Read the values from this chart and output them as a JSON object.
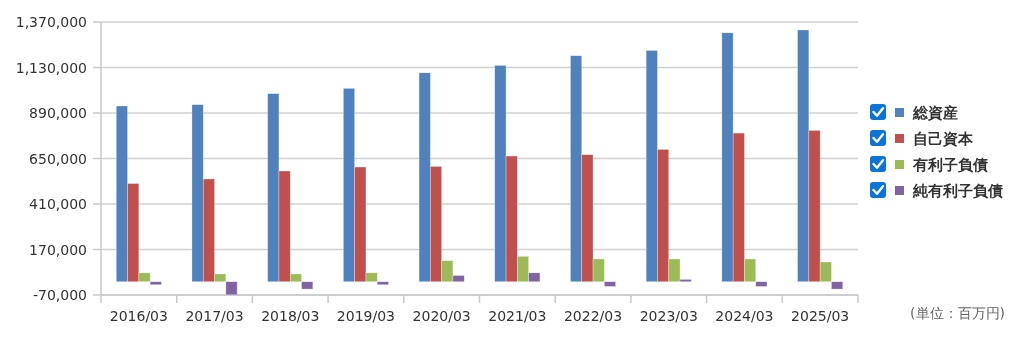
{
  "chart_data": {
    "type": "bar",
    "categories": [
      "2016/03",
      "2017/03",
      "2018/03",
      "2019/03",
      "2020/03",
      "2021/03",
      "2022/03",
      "2023/03",
      "2024/03",
      "2025/03"
    ],
    "series": [
      {
        "name": "総資産",
        "color": "#4f81bd",
        "values": [
          927000,
          934000,
          992000,
          1020000,
          1102000,
          1141000,
          1192000,
          1220000,
          1313000,
          1328000
        ]
      },
      {
        "name": "自己資本",
        "color": "#c0504d",
        "values": [
          518000,
          542000,
          584000,
          605000,
          608000,
          663000,
          670000,
          698000,
          784000,
          798000
        ]
      },
      {
        "name": "有利子負債",
        "color": "#9bbb59",
        "values": [
          47000,
          41000,
          41000,
          47000,
          111000,
          134000,
          120000,
          120000,
          120000,
          104000
        ]
      },
      {
        "name": "純有利子負債",
        "color": "#8064a2",
        "values": [
          -16000,
          -69000,
          -39000,
          -16000,
          33000,
          47000,
          -25000,
          12000,
          -25000,
          -39000
        ]
      }
    ],
    "ylim": [
      -70000,
      1370000
    ],
    "yticks": [
      {
        "value": -70000,
        "label": "-70,000"
      },
      {
        "value": 170000,
        "label": "170,000"
      },
      {
        "value": 410000,
        "label": "410,000"
      },
      {
        "value": 650000,
        "label": "650,000"
      },
      {
        "value": 890000,
        "label": "890,000"
      },
      {
        "value": 1130000,
        "label": "1,130,000"
      },
      {
        "value": 1370000,
        "label": "1,370,000"
      }
    ],
    "grid": "y",
    "legend": "right",
    "annotations": [
      "(単位：百万円)"
    ]
  }
}
